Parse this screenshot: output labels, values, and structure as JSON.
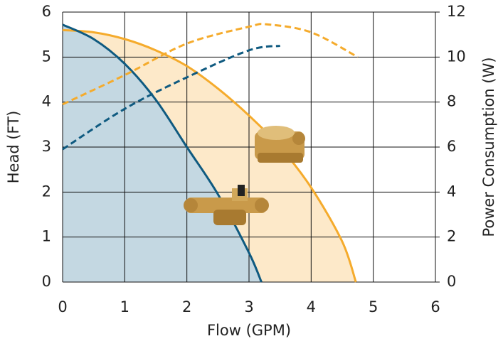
{
  "chart_data": {
    "type": "line",
    "xlabel": "Flow (GPM)",
    "ylabel": "Head (FT)",
    "y2label": "Power Consumption (W)",
    "xlim": [
      0,
      6
    ],
    "xticks": [
      0,
      1,
      2,
      3,
      4,
      5,
      6
    ],
    "ylim": [
      0,
      6
    ],
    "yticks": [
      0,
      1,
      2,
      3,
      4,
      5,
      6
    ],
    "y2lim": [
      0,
      12
    ],
    "y2ticks": [
      0,
      2,
      4,
      6,
      8,
      10,
      12
    ],
    "grid": true,
    "series": [
      {
        "color": "#f5ab2c",
        "fill": "#fde9c9",
        "dashed": false,
        "axis": "y",
        "x": [
          0,
          0.5,
          1,
          1.5,
          2,
          2.5,
          3,
          3.5,
          4,
          4.5,
          4.72
        ],
        "values": [
          5.6,
          5.55,
          5.4,
          5.15,
          4.8,
          4.3,
          3.7,
          3.0,
          2.1,
          0.9,
          0
        ]
      },
      {
        "color": "#0f5a80",
        "fill": "#c4d8e2",
        "dashed": false,
        "axis": "y",
        "x": [
          0,
          0.5,
          1,
          1.5,
          2,
          2.5,
          3,
          3.2
        ],
        "values": [
          5.72,
          5.4,
          4.85,
          4.05,
          3.0,
          1.95,
          0.65,
          0
        ]
      },
      {
        "color": "#f5ab2c",
        "dashed": true,
        "axis": "y2",
        "x": [
          0,
          1,
          2,
          3,
          3.3,
          4,
          4.75
        ],
        "values": [
          7.9,
          9.2,
          10.6,
          11.35,
          11.45,
          11.1,
          10.0
        ]
      },
      {
        "color": "#0f5a80",
        "dashed": true,
        "axis": "y2",
        "x": [
          0,
          1,
          2,
          3,
          3.5
        ],
        "values": [
          5.9,
          7.7,
          9.1,
          10.3,
          10.5
        ]
      }
    ]
  }
}
